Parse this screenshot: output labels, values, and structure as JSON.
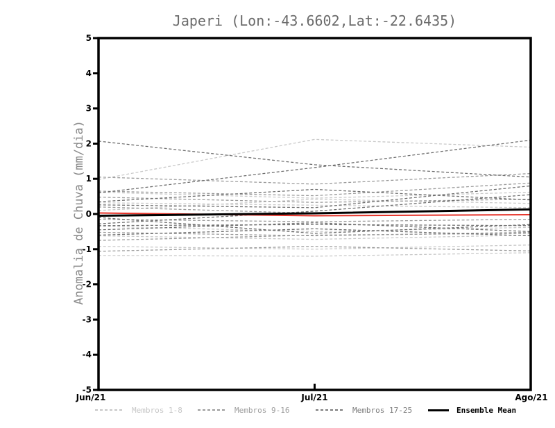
{
  "window": {
    "background": "#ffffff"
  },
  "chart_data": {
    "type": "line",
    "title": "Japeri (Lon:-43.6602,Lat:-22.6435)",
    "ylabel": "Anomalia de Chuva (mm/dia)",
    "xlabel": "",
    "x_categories": [
      "Jun/21",
      "Jul/21",
      "Ago/21"
    ],
    "ylim": [
      -5,
      5
    ],
    "y_ticks": [
      -5,
      -4,
      -3,
      -2,
      -1,
      0,
      1,
      2,
      3,
      4,
      5
    ],
    "grid": false,
    "legend_position": "bottom",
    "line_style_members": "dashed",
    "groups": [
      {
        "name": "Membros 1-8",
        "color": "#c9c9c9"
      },
      {
        "name": "Membros 9-16",
        "color": "#9b9b9b"
      },
      {
        "name": "Membros 17-25",
        "color": "#6f6f6f"
      }
    ],
    "members": [
      {
        "group": 0,
        "values": [
          0.98,
          2.12,
          1.9
        ]
      },
      {
        "group": 0,
        "values": [
          -1.18,
          -1.2,
          -1.1
        ]
      },
      {
        "group": 0,
        "values": [
          0.62,
          0.45,
          0.62
        ]
      },
      {
        "group": 0,
        "values": [
          -0.92,
          -1.0,
          -0.88
        ]
      },
      {
        "group": 0,
        "values": [
          0.32,
          0.25,
          0.18
        ]
      },
      {
        "group": 0,
        "values": [
          -0.62,
          -0.72,
          -0.6
        ]
      },
      {
        "group": 0,
        "values": [
          0.1,
          0.42,
          0.3
        ]
      },
      {
        "group": 0,
        "values": [
          -0.35,
          -0.5,
          -0.38
        ]
      },
      {
        "group": 1,
        "values": [
          1.05,
          0.85,
          1.15
        ]
      },
      {
        "group": 1,
        "values": [
          0.65,
          0.52,
          0.88
        ]
      },
      {
        "group": 1,
        "values": [
          -0.15,
          -0.22,
          -0.15
        ]
      },
      {
        "group": 1,
        "values": [
          -0.52,
          -0.62,
          -0.52
        ]
      },
      {
        "group": 1,
        "values": [
          0.48,
          0.33,
          0.42
        ]
      },
      {
        "group": 1,
        "values": [
          -1.06,
          -0.92,
          -1.05
        ]
      },
      {
        "group": 1,
        "values": [
          0.2,
          0.02,
          0.15
        ]
      },
      {
        "group": 1,
        "values": [
          -0.75,
          -0.6,
          -0.55
        ]
      },
      {
        "group": 2,
        "values": [
          2.07,
          1.4,
          1.05
        ]
      },
      {
        "group": 2,
        "values": [
          0.6,
          1.32,
          2.1
        ]
      },
      {
        "group": 2,
        "values": [
          0.35,
          0.7,
          0.4
        ]
      },
      {
        "group": 2,
        "values": [
          -0.28,
          0.08,
          0.55
        ]
      },
      {
        "group": 2,
        "values": [
          -0.33,
          -0.3,
          -0.33
        ]
      },
      {
        "group": 2,
        "values": [
          -0.6,
          -0.42,
          -0.62
        ]
      },
      {
        "group": 2,
        "values": [
          0.26,
          0.18,
          0.8
        ]
      },
      {
        "group": 2,
        "values": [
          -0.45,
          -0.25,
          -0.5
        ]
      },
      {
        "group": 2,
        "values": [
          -0.1,
          -0.55,
          -0.3
        ]
      }
    ],
    "ensemble_mean": {
      "name": "Ensemble Mean",
      "color": "#000000",
      "values": [
        -0.05,
        0.02,
        0.13
      ]
    },
    "red_line": {
      "name": "red-line",
      "color": "#e63329",
      "values": [
        0.03,
        -0.05,
        -0.02
      ]
    }
  },
  "legend": {
    "items": [
      {
        "label": "Membros 1-8",
        "color": "#c6c6c6",
        "style": "dashed"
      },
      {
        "label": "Membros 9-16",
        "color": "#9b9b9b",
        "style": "dashed"
      },
      {
        "label": "Membros 17-25",
        "color": "#7a7a7a",
        "style": "dashed"
      },
      {
        "label": "Ensemble Mean",
        "color": "#000000",
        "style": "solid"
      }
    ]
  },
  "colors": {
    "axis": "#000000",
    "tick_label": "#000000",
    "title": "#6b6b6b",
    "ylabel": "#8a8a8a",
    "red_line": "#e63329"
  }
}
